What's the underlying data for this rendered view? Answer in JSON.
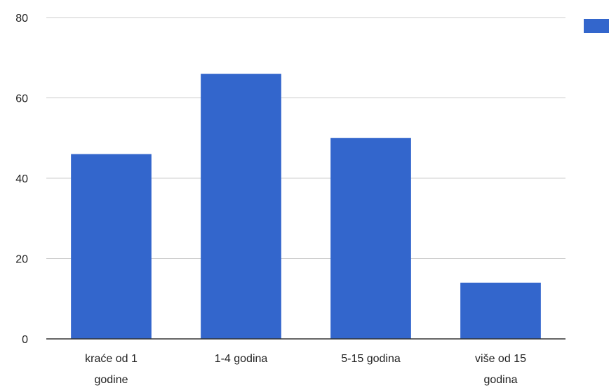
{
  "chart_data": {
    "type": "bar",
    "categories": [
      [
        "kraće od 1",
        "godine"
      ],
      [
        "1-4 godina"
      ],
      [
        "5-15 godina"
      ],
      [
        "više od 15",
        "godina"
      ]
    ],
    "values": [
      46,
      66,
      50,
      14
    ],
    "yticks": [
      "0",
      "20",
      "40",
      "60",
      "80"
    ],
    "ylim": [
      0,
      80
    ],
    "grid": true,
    "legend": "top-right",
    "colors": {
      "bar": "#3366cc",
      "grid": "#cccccc",
      "axis": "#333333"
    }
  }
}
